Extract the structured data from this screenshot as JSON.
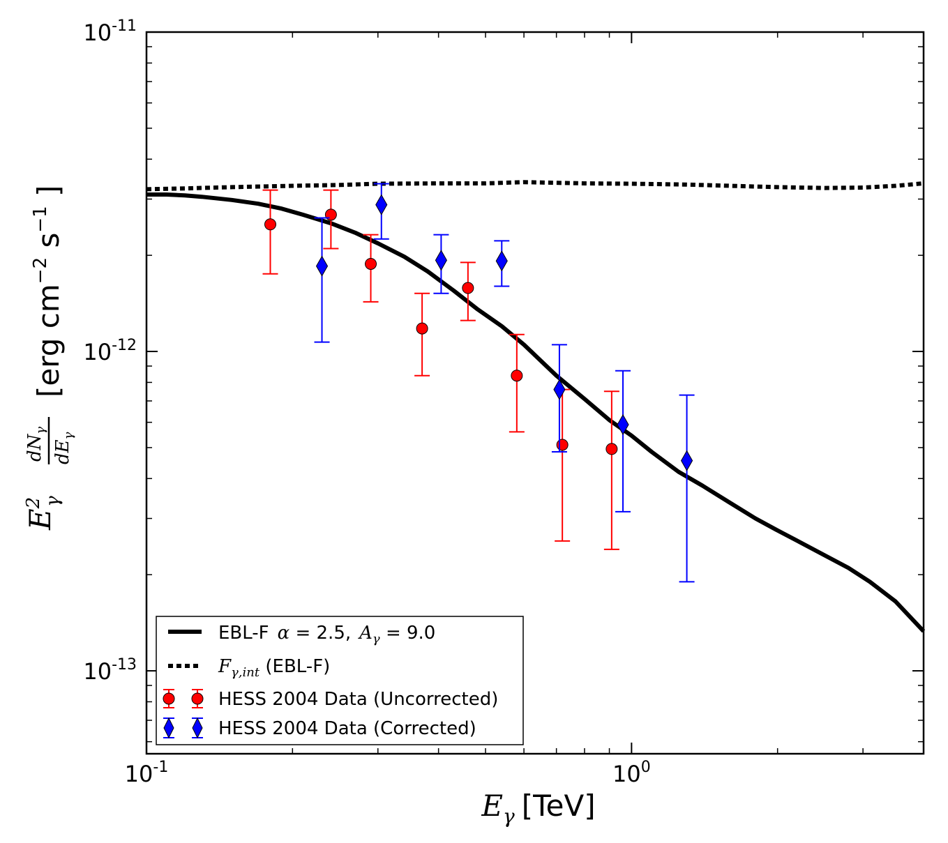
{
  "chart_data": {
    "type": "scatter",
    "x_scale": "log",
    "y_scale": "log",
    "xlim": [
      0.1,
      4.0
    ],
    "ylim": [
      5.5e-14,
      1e-11
    ],
    "x_ticks": [
      {
        "value": 0.1,
        "base": "10",
        "exp": "-1"
      },
      {
        "value": 1.0,
        "base": "10",
        "exp": "0"
      }
    ],
    "y_ticks": [
      {
        "value": 1e-11,
        "base": "10",
        "exp": "-11"
      },
      {
        "value": 1e-12,
        "base": "10",
        "exp": "-12"
      },
      {
        "value": 1e-13,
        "base": "10",
        "exp": "-13"
      }
    ],
    "xlabel": {
      "symbol": "E",
      "sub": "γ",
      "unit": "[TeV]"
    },
    "ylabel": {
      "unit_prefix": "[erg cm",
      "exp1": "−2",
      "mid": " s",
      "exp2": "−1",
      "unit_suffix": " ]"
    },
    "colors": {
      "model": "#000000",
      "uncorrected": "#ff0000",
      "corrected": "#0000ff"
    },
    "series": [
      {
        "name": "EBL-F α = 2.5, A_γ = 9.0",
        "kind": "line",
        "style": "solid",
        "x": [
          0.1,
          0.11,
          0.12,
          0.13,
          0.15,
          0.17,
          0.19,
          0.21,
          0.24,
          0.27,
          0.3,
          0.34,
          0.38,
          0.43,
          0.48,
          0.54,
          0.6,
          0.7,
          0.8,
          0.9,
          1.0,
          1.1,
          1.25,
          1.4,
          1.6,
          1.8,
          2.0,
          2.2,
          2.5,
          2.8,
          3.1,
          3.5,
          4.0
        ],
        "y": [
          3.1e-12,
          3.1e-12,
          3.08e-12,
          3.05e-12,
          2.98e-12,
          2.9e-12,
          2.8e-12,
          2.68e-12,
          2.52e-12,
          2.35e-12,
          2.18e-12,
          1.98e-12,
          1.78e-12,
          1.55e-12,
          1.36e-12,
          1.2e-12,
          1.05e-12,
          8.4e-13,
          7.1e-13,
          6.1e-13,
          5.45e-13,
          4.85e-13,
          4.2e-13,
          3.8e-13,
          3.35e-13,
          3e-13,
          2.75e-13,
          2.55e-13,
          2.3e-13,
          2.1e-13,
          1.9e-13,
          1.65e-13,
          1.33e-13
        ]
      },
      {
        "name": "F_γ,int (EBL-F)",
        "kind": "line",
        "style": "dotted",
        "x": [
          0.1,
          0.12,
          0.15,
          0.2,
          0.25,
          0.3,
          0.4,
          0.5,
          0.6,
          0.8,
          1.0,
          1.3,
          1.6,
          2.0,
          2.5,
          3.0,
          3.5,
          4.0
        ],
        "y": [
          3.22e-12,
          3.24e-12,
          3.27e-12,
          3.3e-12,
          3.32e-12,
          3.35e-12,
          3.36e-12,
          3.36e-12,
          3.39e-12,
          3.36e-12,
          3.35e-12,
          3.33e-12,
          3.3e-12,
          3.27e-12,
          3.25e-12,
          3.26e-12,
          3.3e-12,
          3.36e-12
        ]
      },
      {
        "name": "HESS 2004 Data (Uncorrected)",
        "kind": "errorbar",
        "marker": "circle",
        "points": [
          {
            "x": 0.18,
            "y": 2.5e-12,
            "lo": 1.75e-12,
            "hi": 3.2e-12
          },
          {
            "x": 0.24,
            "y": 2.68e-12,
            "lo": 2.1e-12,
            "hi": 3.2e-12
          },
          {
            "x": 0.29,
            "y": 1.88e-12,
            "lo": 1.43e-12,
            "hi": 2.32e-12
          },
          {
            "x": 0.37,
            "y": 1.18e-12,
            "lo": 8.4e-13,
            "hi": 1.52e-12
          },
          {
            "x": 0.46,
            "y": 1.58e-12,
            "lo": 1.25e-12,
            "hi": 1.9e-12
          },
          {
            "x": 0.58,
            "y": 8.4e-13,
            "lo": 5.6e-13,
            "hi": 1.13e-12
          },
          {
            "x": 0.72,
            "y": 5.1e-13,
            "lo": 2.55e-13,
            "hi": 7.6e-13
          },
          {
            "x": 0.91,
            "y": 4.95e-13,
            "lo": 2.4e-13,
            "hi": 7.5e-13
          }
        ]
      },
      {
        "name": "HESS 2004 Data (Corrected)",
        "kind": "errorbar",
        "marker": "diamond",
        "points": [
          {
            "x": 0.23,
            "y": 1.85e-12,
            "lo": 1.07e-12,
            "hi": 2.62e-12
          },
          {
            "x": 0.305,
            "y": 2.88e-12,
            "lo": 2.25e-12,
            "hi": 3.35e-12
          },
          {
            "x": 0.405,
            "y": 1.93e-12,
            "lo": 1.52e-12,
            "hi": 2.32e-12
          },
          {
            "x": 0.54,
            "y": 1.92e-12,
            "lo": 1.6e-12,
            "hi": 2.22e-12
          },
          {
            "x": 0.71,
            "y": 7.6e-13,
            "lo": 4.85e-13,
            "hi": 1.05e-12
          },
          {
            "x": 0.96,
            "y": 5.9e-13,
            "lo": 3.15e-13,
            "hi": 8.7e-13
          },
          {
            "x": 1.3,
            "y": 4.55e-13,
            "lo": 1.9e-13,
            "hi": 7.3e-13
          }
        ]
      }
    ],
    "legend": {
      "placement": "lower-left",
      "entries": [
        {
          "prefix": "EBL-F",
          "math1": "α",
          "text1": " = 2.5,",
          "math2": "A",
          "sub": "γ",
          "text2": " = 9.0"
        },
        {
          "math": "F",
          "sub": "γ,int",
          "text": " (EBL-F)"
        },
        {
          "text": "HESS 2004 Data (Uncorrected)"
        },
        {
          "text": "HESS 2004 Data (Corrected)"
        }
      ]
    }
  }
}
